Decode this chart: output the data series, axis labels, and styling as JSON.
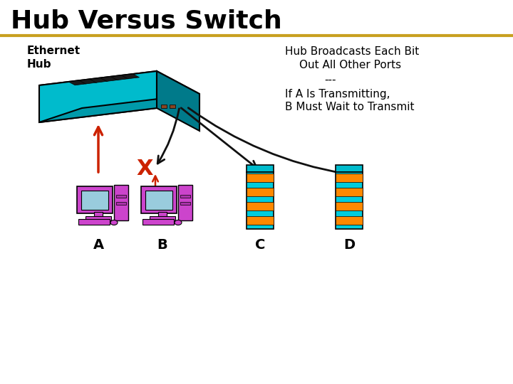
{
  "title": "Hub Versus Switch",
  "title_color": "#000000",
  "title_fontsize": 26,
  "divider_color": "#C8A020",
  "background_color": "#ffffff",
  "ethernet_hub_label": "Ethernet\nHub",
  "right_text": "Hub Broadcasts Each Bit\nOut All Other Ports\n---\nIf A Is Transmitting,\nB Must Wait to Transmit",
  "node_labels": [
    "A",
    "B",
    "C",
    "D"
  ],
  "hub_color_top": "#00DDEE",
  "hub_color_main": "#00CCDD",
  "hub_color_dark": "#009EB0",
  "hub_color_front": "#007A8A",
  "computer_color": "#CC44CC",
  "server_color_cyan": "#00CCDD",
  "server_color_orange": "#FF8800",
  "arrow_color_red": "#CC2200",
  "arrow_color_black": "#111111",
  "x_color_red": "#CC2200"
}
